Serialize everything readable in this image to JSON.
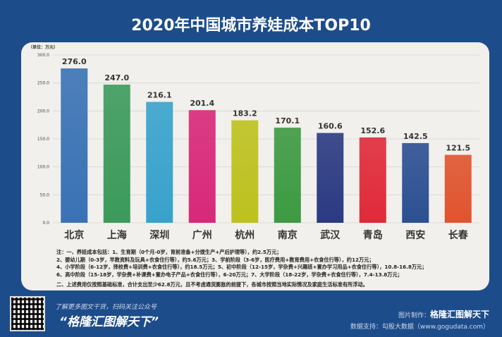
{
  "chart_data": {
    "type": "bar",
    "title": "2020年中国城市养娃成本TOP10",
    "ylabel": "（单位：万元）",
    "ylim": [
      0,
      300
    ],
    "yticks": [
      "0.0",
      "50.0",
      "100.0",
      "150.0",
      "200.0",
      "250.0",
      "300.0"
    ],
    "categories": [
      "北京",
      "上海",
      "深圳",
      "广州",
      "杭州",
      "南京",
      "武汉",
      "青岛",
      "西安",
      "长春"
    ],
    "values": [
      276.0,
      247.0,
      216.1,
      201.4,
      183.2,
      170.1,
      160.6,
      152.6,
      142.5,
      121.5
    ],
    "colors": [
      "#3a72b5",
      "#3c9a5c",
      "#38a2cc",
      "#d8287a",
      "#bcc21e",
      "#3d9a42",
      "#2b3a82",
      "#e02a3a",
      "#2c5092",
      "#e0542e"
    ],
    "grid": true
  },
  "notes": [
    "注：一、养娃成本包括：1、生育期（0个月-0岁，育前准备+分娩生产+产后护理等），约2.5万元；",
    "2、婴幼儿期（0-3岁，早教资料及玩具+衣食住行等），约5.6万元；3、学前阶段（3-6岁，医疗费用+教育费用+衣食住行等），约12万元；",
    "4、小学阶段（6-12岁，择校费+培训费+衣食住行等），约18.5万元；5、初中阶段（12-15岁，学杂费+兴趣班+置办学习用品+衣食住行等），10.8-16.8万元；",
    "6、高中阶段（15-18岁，学杂费+补课费+置办电子产品+衣食住行等），6-20万元；7、大学阶段（18-22岁，学杂费+衣食住行等），7.4-13.8万元；",
    "二、上述费用仅按照基础标准，合计支出至少62.8万元，且不考虑通货膨胀的前提下，各城市按照当地实际情况及家庭生活标准有所浮动。"
  ],
  "footer": {
    "scan_text": "了解更多图文干货，扫码关注公众号",
    "slogan": "“格隆汇图解天下”",
    "made_by_label": "图片制作：",
    "made_by": "格隆汇图解天下",
    "data_source": "数据支持：勾股大数据（www.gogudata.com）"
  }
}
